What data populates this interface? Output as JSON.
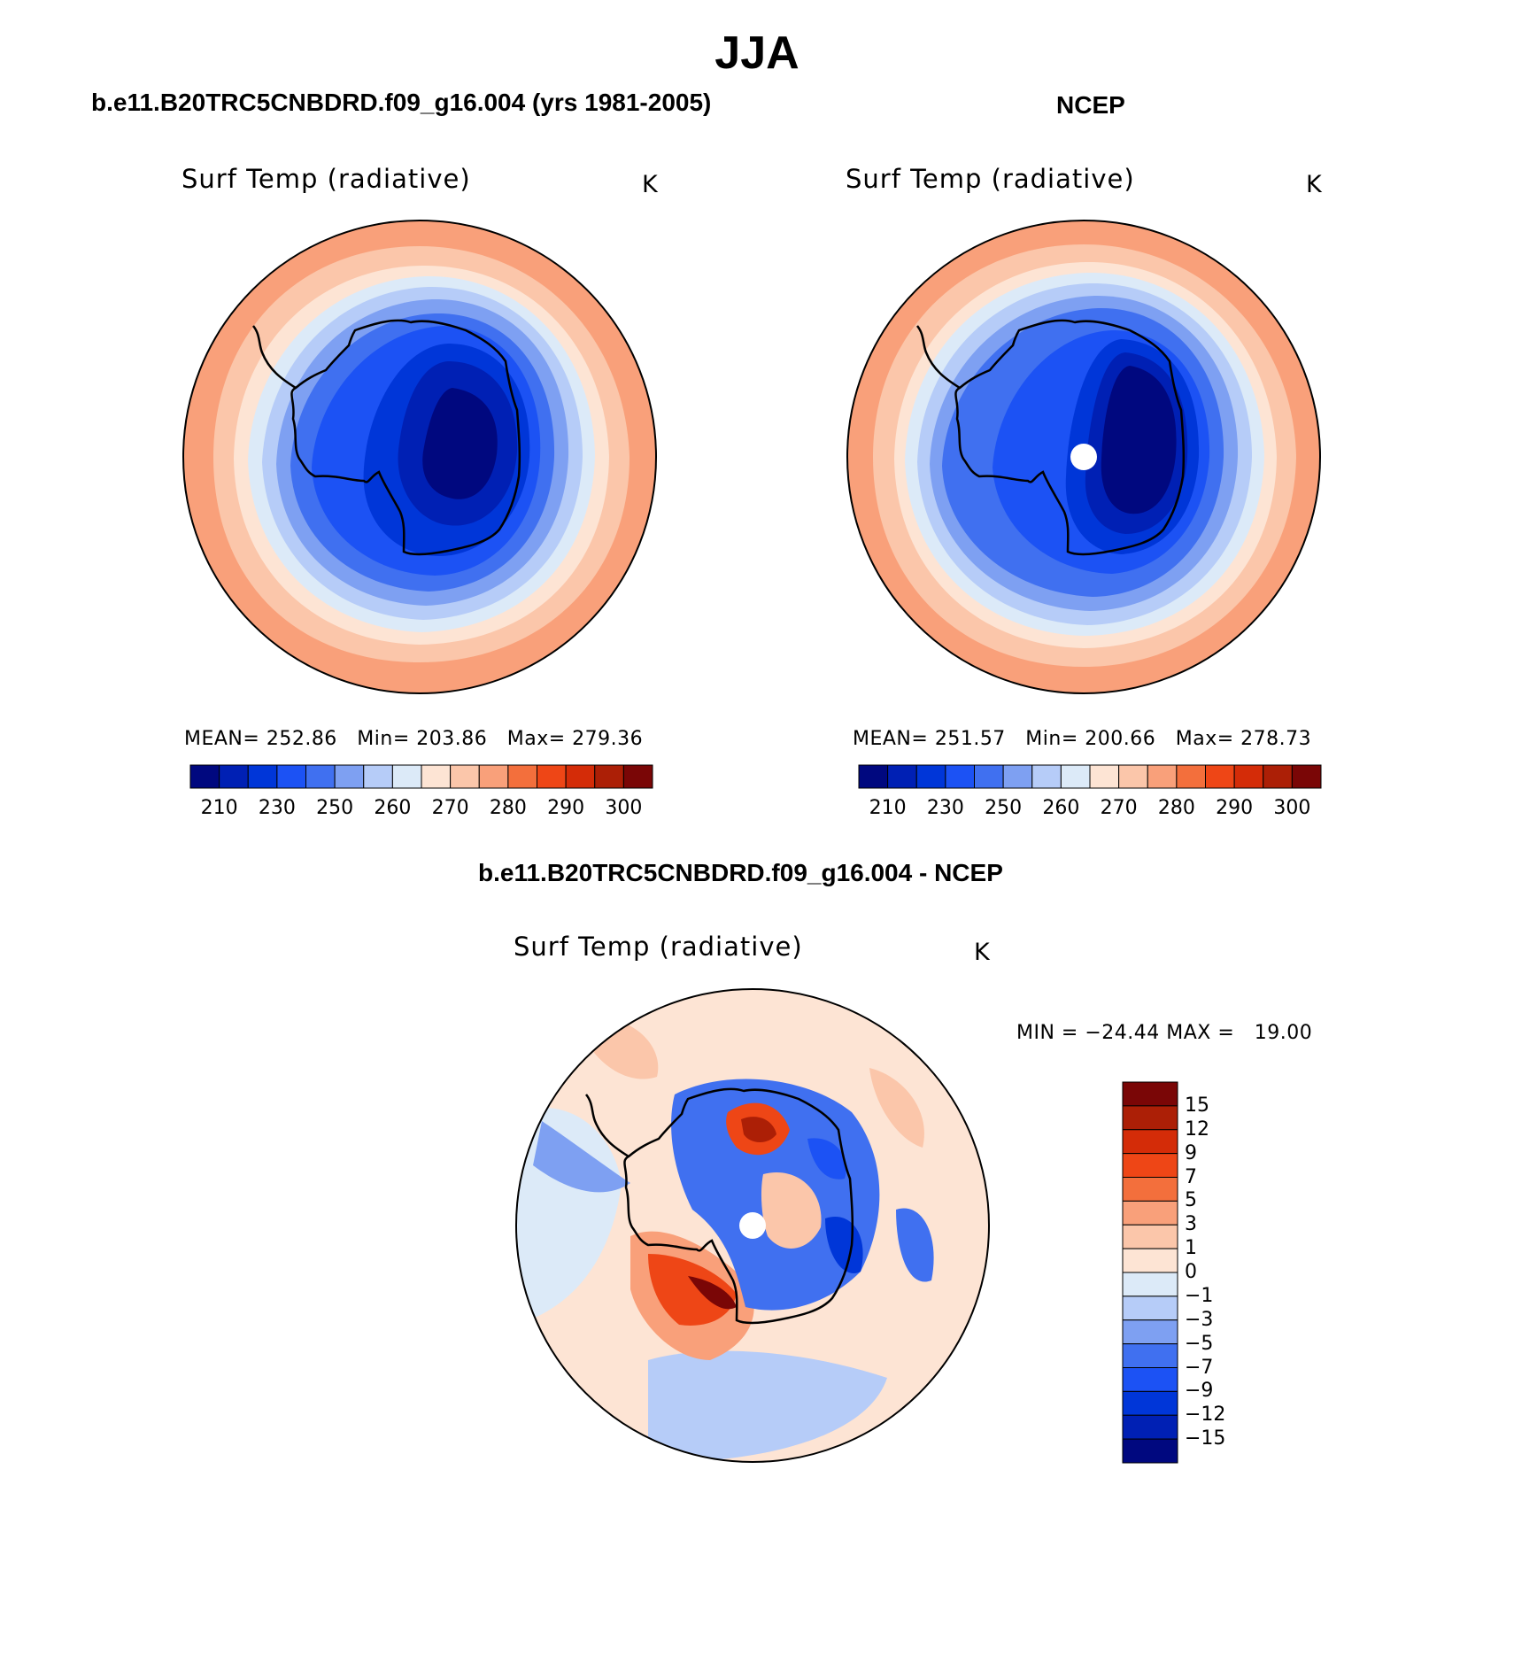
{
  "figure": {
    "title": "JJA",
    "colors": {
      "full_field_palette": [
        "#00087f",
        "#0020b4",
        "#0036d8",
        "#1c52f4",
        "#4070f0",
        "#7ea0f2",
        "#b6ccf8",
        "#dceaf8",
        "#fde4d4",
        "#fbc6aa",
        "#f9a07a",
        "#f36f3c",
        "#ee4616",
        "#d42c08",
        "#ac1f06",
        "#7a0606"
      ],
      "diff_palette": [
        "#00087f",
        "#0020b4",
        "#0036d8",
        "#1c52f4",
        "#4070f0",
        "#7ea0f2",
        "#b6ccf8",
        "#dceaf8",
        "#fde4d4",
        "#fbc6aa",
        "#f9a07a",
        "#f36f3c",
        "#ee4616",
        "#d42c08",
        "#ac1f06",
        "#7a0606"
      ]
    }
  },
  "panels": [
    {
      "id": "model",
      "header": "b.e11.B20TRC5CNBDRD.f09_g16.004 (yrs 1981-2005)",
      "variable": "Surf Temp (radiative)",
      "units": "K",
      "stats": {
        "mean_label": "MEAN=",
        "mean": "252.86",
        "min_label": "Min=",
        "min": "203.86",
        "max_label": "Max=",
        "max": "279.36"
      },
      "colorbar_labels": [
        "210",
        "230",
        "250",
        "260",
        "270",
        "280",
        "290",
        "300"
      ]
    },
    {
      "id": "ncep",
      "header": "NCEP",
      "variable": "Surf Temp (radiative)",
      "units": "K",
      "stats": {
        "mean_label": "MEAN=",
        "mean": "251.57",
        "min_label": "Min=",
        "min": "200.66",
        "max_label": "Max=",
        "max": "278.73"
      },
      "colorbar_labels": [
        "210",
        "230",
        "250",
        "260",
        "270",
        "280",
        "290",
        "300"
      ]
    },
    {
      "id": "difference",
      "header": "b.e11.B20TRC5CNBDRD.f09_g16.004 - NCEP",
      "variable": "Surf Temp (radiative)",
      "units": "K",
      "stats_text": "MIN = −24.44 MAX =   19.00",
      "colorbar_labels": [
        "15",
        "12",
        "9",
        "7",
        "5",
        "3",
        "1",
        "0",
        "−1",
        "−3",
        "−5",
        "−7",
        "−9",
        "−12",
        "−15"
      ]
    }
  ]
}
